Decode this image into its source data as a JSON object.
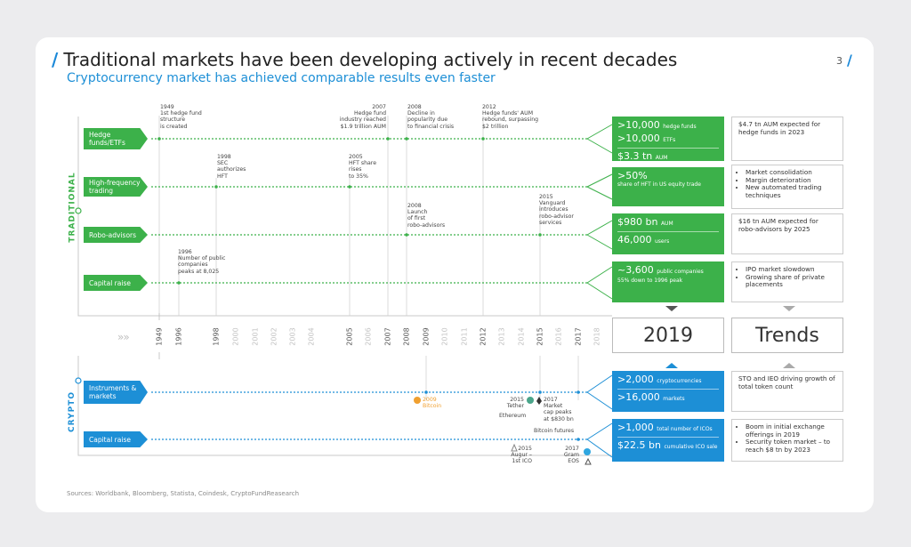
{
  "page": {
    "title": "Traditional markets have been developing actively in recent decades",
    "subtitle": "Cryptocurrency market has achieved comparable results even faster",
    "page_number": "3",
    "sources": "Sources: Worldbank, Bloomberg, Statista, Coindesk, CryptoFundReasearch"
  },
  "sections": {
    "traditional": "TRADITIONAL",
    "crypto": "CRYPTO"
  },
  "rows": {
    "hedge_funds": "Hedge funds/ETFs",
    "hft": "High-frequency trading",
    "robo": "Robo-advisors",
    "capital_trad": "Capital raise",
    "instruments": "Instruments & markets",
    "capital_crypto": "Capital raise"
  },
  "annotations": {
    "a1949": "1949\n1st hedge fund\nstructure\nis created",
    "a2007": "2007\nHedge fund\nindustry reached\n$1.9 trillion AUM",
    "a2008a": "2008\nDecline in\npopularity due\nto financial crisis",
    "a2012": "2012\nHedge funds' AUM\nrebound, surpassing\n$2 trillion",
    "a1998": "1998\nSEC\nauthorizes\nHFT",
    "a2005": "2005\nHFT share\nrises\nto 35%",
    "a2008b": "2008\nLaunch\nof first\nrobo-advisors",
    "a2015": "2015\nVanguard\nintroduces\nrobo-advisor\nservices",
    "a1996": "1996\nNumber of public\ncompanies\npeaks at 8,025",
    "bitcoin": "2009\nBitcoin",
    "tether": "2015\nTether",
    "ethereum": "Ethereum",
    "marketcap": "2017\nMarket\ncap peaks\nat $830 bn",
    "futures": "Bitcoin futures",
    "augur": "2015\nAugur –\n1st ICO",
    "gram": "2017\nGram\nEOS"
  },
  "summary_2019": {
    "hedge": [
      {
        "big": ">10,000",
        "small": "hedge funds"
      },
      {
        "big": ">10,000",
        "small": "ETFs"
      },
      {
        "big": "$3.3 tn",
        "small": "AUM"
      }
    ],
    "hft": {
      "big": ">50%",
      "small": "share of HFT in US equity trade"
    },
    "robo": [
      {
        "big": "$980 bn",
        "small": "AUM"
      },
      {
        "big": "46,000",
        "small": "users"
      }
    ],
    "capital": {
      "big": "~3,600",
      "small": "public companies",
      "note": "55% down to 1996 peak"
    },
    "instruments": [
      {
        "big": ">2,000",
        "small": "cryptocurrencies"
      },
      {
        "big": ">16,000",
        "small": "markets"
      }
    ],
    "crypto_capital": [
      {
        "big": ">1,000",
        "small": "total number of ICOs"
      },
      {
        "big": "$22.5 bn",
        "small": "cumulative ICO sale"
      }
    ]
  },
  "trends": {
    "hedge": "$4.7 tn AUM expected for hedge funds in 2023",
    "hft": [
      "Market consolidation",
      "Margin deterioration",
      "New automated trading techniques"
    ],
    "robo": "$16 tn AUM expected for robo-advisors by 2025",
    "capital": [
      "IPO market slowdown",
      "Growing share of private placements"
    ],
    "instruments": "STO and IEO driving growth of total token count",
    "crypto_capital": [
      "Boom in initial exchange offerings in 2019",
      "Security token market – to reach $8 tn by 2023"
    ]
  },
  "headers": {
    "year_2019": "2019",
    "trends": "Trends",
    "arrows": "»»"
  },
  "years": [
    "1949",
    "1996",
    "1998",
    "2000",
    "2001",
    "2002",
    "2003",
    "2004",
    "2005",
    "2006",
    "2007",
    "2008",
    "2009",
    "2010",
    "2011",
    "2012",
    "2013",
    "2014",
    "2015",
    "2016",
    "2017",
    "2018"
  ],
  "years_highlight": [
    "1949",
    "1996",
    "1998",
    "2005",
    "2007",
    "2008",
    "2009",
    "2012",
    "2015",
    "2017"
  ],
  "colors": {
    "green": "#3cb14a",
    "blue": "#1d8fd6",
    "accent": "#1a88d8"
  }
}
